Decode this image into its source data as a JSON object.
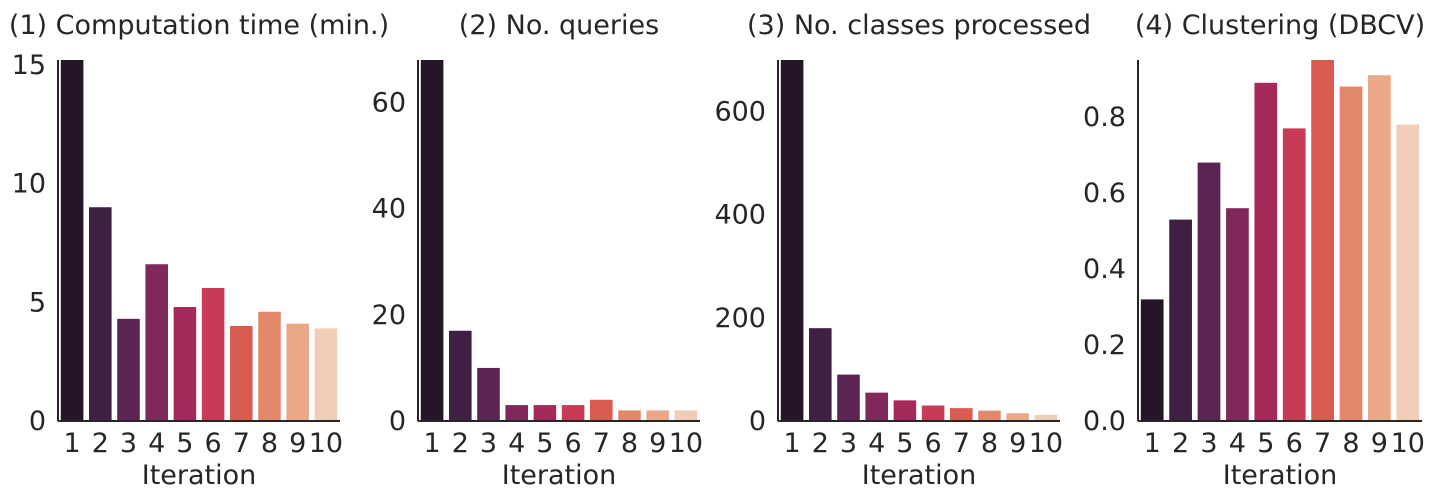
{
  "palette": [
    "#241628",
    "#3f1f43",
    "#5c2452",
    "#7f2859",
    "#a6295c",
    "#c83b56",
    "#d85c4f",
    "#e3876a",
    "#eaa887",
    "#f0cdb7"
  ],
  "axis_color": "#262626",
  "chart_data": [
    {
      "type": "bar",
      "title": "(1) Computation time (min.)",
      "xlabel": "Iteration",
      "ylabel": "",
      "categories": [
        "1",
        "2",
        "3",
        "4",
        "5",
        "6",
        "7",
        "8",
        "9",
        "10"
      ],
      "values": [
        15.2,
        9.0,
        4.3,
        6.6,
        4.8,
        5.6,
        4.0,
        4.6,
        4.1,
        3.9
      ],
      "ylim": [
        0,
        15.2
      ],
      "yticks": [
        0,
        5,
        10,
        15
      ],
      "ytick_labels": [
        "0",
        "5",
        "10",
        "15"
      ],
      "grid": false
    },
    {
      "type": "bar",
      "title": "(2) No. queries",
      "xlabel": "Iteration",
      "ylabel": "",
      "categories": [
        "1",
        "2",
        "3",
        "4",
        "5",
        "6",
        "7",
        "8",
        "9",
        "10"
      ],
      "values": [
        68,
        17,
        10,
        3,
        3,
        3,
        4,
        2,
        2,
        2
      ],
      "ylim": [
        0,
        68
      ],
      "yticks": [
        0,
        20,
        40,
        60
      ],
      "ytick_labels": [
        "0",
        "20",
        "40",
        "60"
      ],
      "grid": false
    },
    {
      "type": "bar",
      "title": "(3) No. classes processed",
      "xlabel": "Iteration",
      "ylabel": "",
      "categories": [
        "1",
        "2",
        "3",
        "4",
        "5",
        "6",
        "7",
        "8",
        "9",
        "10"
      ],
      "values": [
        700,
        180,
        90,
        55,
        40,
        30,
        25,
        20,
        15,
        12
      ],
      "ylim": [
        0,
        700
      ],
      "yticks": [
        0,
        200,
        400,
        600
      ],
      "ytick_labels": [
        "0",
        "200",
        "400",
        "600"
      ],
      "grid": false
    },
    {
      "type": "bar",
      "title": "(4) Clustering (DBCV)",
      "xlabel": "Iteration",
      "ylabel": "",
      "categories": [
        "1",
        "2",
        "3",
        "4",
        "5",
        "6",
        "7",
        "8",
        "9",
        "10"
      ],
      "values": [
        0.32,
        0.53,
        0.68,
        0.56,
        0.89,
        0.77,
        0.95,
        0.88,
        0.91,
        0.78
      ],
      "ylim": [
        0,
        0.95
      ],
      "yticks": [
        0.0,
        0.2,
        0.4,
        0.6,
        0.8
      ],
      "ytick_labels": [
        "0.0",
        "0.2",
        "0.4",
        "0.6",
        "0.8"
      ],
      "grid": false
    }
  ]
}
